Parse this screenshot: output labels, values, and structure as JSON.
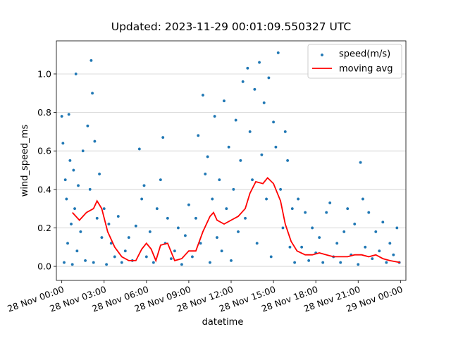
{
  "chart_data": {
    "type": "scatter",
    "title": "Updated: 2023-11-29 00:01:09.550327 UTC",
    "x_label": "datetime",
    "y_label": "wind_speed_ms",
    "xlim": [
      "27 Nov 23:37",
      "29 Nov 00:23"
    ],
    "xticks": [
      "28 Nov 00:00",
      "28 Nov 03:00",
      "28 Nov 06:00",
      "28 Nov 09:00",
      "28 Nov 12:00",
      "28 Nov 15:00",
      "28 Nov 18:00",
      "28 Nov 21:00",
      "29 Nov 00:00"
    ],
    "ylim": [
      -0.073,
      1.172
    ],
    "yticks": [
      {
        "value": 0,
        "label": "0.0"
      },
      0.2,
      0.4,
      0.6,
      0.8,
      {
        "value": 1,
        "label": "1.0"
      }
    ],
    "grid": "y",
    "legend": "upper right",
    "series": [
      {
        "name": "speed(m/s)",
        "type": "scatter",
        "color": "#1f77b4",
        "x": [
          "28 Nov 00:00",
          "28 Nov 00:05",
          "28 Nov 00:10",
          "28 Nov 00:15",
          "28 Nov 00:20",
          "28 Nov 00:25",
          "28 Nov 00:30",
          "28 Nov 00:35",
          "28 Nov 00:40",
          "28 Nov 00:45",
          "28 Nov 00:50",
          "28 Nov 00:55",
          "28 Nov 01:00",
          "28 Nov 01:05",
          "28 Nov 01:10",
          "28 Nov 01:20",
          "28 Nov 01:30",
          "28 Nov 01:40",
          "28 Nov 01:50",
          "28 Nov 02:00",
          "28 Nov 02:05",
          "28 Nov 02:10",
          "28 Nov 02:15",
          "28 Nov 02:20",
          "28 Nov 02:30",
          "28 Nov 02:40",
          "28 Nov 02:50",
          "28 Nov 03:00",
          "28 Nov 03:10",
          "28 Nov 03:20",
          "28 Nov 03:30",
          "28 Nov 03:45",
          "28 Nov 04:00",
          "28 Nov 04:15",
          "28 Nov 04:30",
          "28 Nov 04:45",
          "28 Nov 05:00",
          "28 Nov 05:15",
          "28 Nov 05:30",
          "28 Nov 05:40",
          "28 Nov 05:50",
          "28 Nov 06:00",
          "28 Nov 06:15",
          "28 Nov 06:30",
          "28 Nov 06:45",
          "28 Nov 07:00",
          "28 Nov 07:10",
          "28 Nov 07:20",
          "28 Nov 07:30",
          "28 Nov 07:45",
          "28 Nov 08:00",
          "28 Nov 08:15",
          "28 Nov 08:30",
          "28 Nov 08:45",
          "28 Nov 09:00",
          "28 Nov 09:15",
          "28 Nov 09:30",
          "28 Nov 09:40",
          "28 Nov 09:50",
          "28 Nov 10:00",
          "28 Nov 10:10",
          "28 Nov 10:20",
          "28 Nov 10:30",
          "28 Nov 10:40",
          "28 Nov 10:50",
          "28 Nov 11:00",
          "28 Nov 11:10",
          "28 Nov 11:20",
          "28 Nov 11:30",
          "28 Nov 11:40",
          "28 Nov 11:50",
          "28 Nov 12:00",
          "28 Nov 12:10",
          "28 Nov 12:20",
          "28 Nov 12:30",
          "28 Nov 12:40",
          "28 Nov 12:50",
          "28 Nov 13:00",
          "28 Nov 13:10",
          "28 Nov 13:20",
          "28 Nov 13:30",
          "28 Nov 13:40",
          "28 Nov 13:50",
          "28 Nov 14:00",
          "28 Nov 14:10",
          "28 Nov 14:20",
          "28 Nov 14:30",
          "28 Nov 14:40",
          "28 Nov 14:50",
          "28 Nov 15:00",
          "28 Nov 15:10",
          "28 Nov 15:20",
          "28 Nov 15:30",
          "28 Nov 15:40",
          "28 Nov 15:50",
          "28 Nov 16:00",
          "28 Nov 16:10",
          "28 Nov 16:20",
          "28 Nov 16:30",
          "28 Nov 16:45",
          "28 Nov 17:00",
          "28 Nov 17:15",
          "28 Nov 17:30",
          "28 Nov 17:45",
          "28 Nov 18:00",
          "28 Nov 18:15",
          "28 Nov 18:30",
          "28 Nov 18:45",
          "28 Nov 19:00",
          "28 Nov 19:15",
          "28 Nov 19:30",
          "28 Nov 19:45",
          "28 Nov 20:00",
          "28 Nov 20:15",
          "28 Nov 20:30",
          "28 Nov 20:45",
          "28 Nov 21:00",
          "28 Nov 21:10",
          "28 Nov 21:20",
          "28 Nov 21:30",
          "28 Nov 21:45",
          "28 Nov 22:00",
          "28 Nov 22:15",
          "28 Nov 22:30",
          "28 Nov 22:45",
          "28 Nov 23:00",
          "28 Nov 23:15",
          "28 Nov 23:30",
          "28 Nov 23:45",
          "28 Nov 23:55"
        ],
        "values": [
          0.78,
          0.64,
          0.02,
          0.45,
          0.35,
          0.12,
          0.79,
          0.55,
          0.22,
          0.01,
          0.5,
          0.3,
          1.0,
          0.08,
          0.42,
          0.18,
          0.6,
          0.03,
          0.73,
          0.4,
          1.07,
          0.9,
          0.02,
          0.65,
          0.25,
          0.48,
          0.15,
          0.3,
          0.01,
          0.22,
          0.12,
          0.05,
          0.26,
          0.02,
          0.08,
          0.15,
          0.03,
          0.21,
          0.61,
          0.35,
          0.42,
          0.05,
          0.18,
          0.02,
          0.3,
          0.45,
          0.67,
          0.12,
          0.25,
          0.04,
          0.08,
          0.2,
          0.01,
          0.16,
          0.32,
          0.05,
          0.25,
          0.68,
          0.12,
          0.89,
          0.48,
          0.57,
          0.02,
          0.35,
          0.78,
          0.15,
          0.45,
          0.08,
          0.86,
          0.3,
          0.62,
          0.03,
          0.4,
          0.76,
          0.18,
          0.55,
          0.96,
          0.25,
          1.03,
          0.7,
          0.45,
          0.92,
          0.12,
          1.06,
          0.58,
          0.85,
          0.35,
          0.98,
          0.05,
          0.75,
          0.62,
          1.11,
          0.4,
          0.2,
          0.7,
          0.55,
          0.1,
          0.3,
          0.02,
          0.35,
          0.1,
          0.28,
          0.03,
          0.2,
          0.07,
          0.15,
          0.02,
          0.28,
          0.33,
          0.05,
          0.12,
          0.02,
          0.18,
          0.3,
          0.06,
          0.22,
          0.01,
          0.54,
          0.35,
          0.1,
          0.28,
          0.04,
          0.18,
          0.08,
          0.23,
          0.02,
          0.12,
          0.06,
          0.2,
          0.02
        ]
      },
      {
        "name": "moving avg",
        "type": "line",
        "color": "#ff0000",
        "x": [
          "28 Nov 00:45",
          "28 Nov 01:15",
          "28 Nov 01:45",
          "28 Nov 02:15",
          "28 Nov 02:30",
          "28 Nov 02:50",
          "28 Nov 03:15",
          "28 Nov 03:45",
          "28 Nov 04:15",
          "28 Nov 04:45",
          "28 Nov 05:15",
          "28 Nov 05:40",
          "28 Nov 06:00",
          "28 Nov 06:20",
          "28 Nov 06:40",
          "28 Nov 07:00",
          "28 Nov 07:30",
          "28 Nov 08:00",
          "28 Nov 08:30",
          "28 Nov 09:00",
          "28 Nov 09:30",
          "28 Nov 10:00",
          "28 Nov 10:30",
          "28 Nov 10:45",
          "28 Nov 11:00",
          "28 Nov 11:30",
          "28 Nov 12:00",
          "28 Nov 12:30",
          "28 Nov 13:00",
          "28 Nov 13:20",
          "28 Nov 13:45",
          "28 Nov 14:15",
          "28 Nov 14:35",
          "28 Nov 15:00",
          "28 Nov 15:30",
          "28 Nov 15:50",
          "28 Nov 16:15",
          "28 Nov 16:40",
          "28 Nov 17:15",
          "28 Nov 17:45",
          "28 Nov 18:15",
          "28 Nov 18:45",
          "28 Nov 19:15",
          "28 Nov 19:45",
          "28 Nov 20:15",
          "28 Nov 20:45",
          "28 Nov 21:15",
          "28 Nov 21:45",
          "28 Nov 22:15",
          "28 Nov 22:45",
          "28 Nov 23:15",
          "28 Nov 23:59"
        ],
        "values": [
          0.28,
          0.24,
          0.28,
          0.3,
          0.34,
          0.3,
          0.18,
          0.1,
          0.05,
          0.03,
          0.03,
          0.09,
          0.12,
          0.09,
          0.03,
          0.11,
          0.12,
          0.03,
          0.04,
          0.08,
          0.08,
          0.18,
          0.26,
          0.28,
          0.24,
          0.22,
          0.24,
          0.26,
          0.3,
          0.38,
          0.44,
          0.43,
          0.46,
          0.43,
          0.34,
          0.22,
          0.13,
          0.08,
          0.06,
          0.06,
          0.07,
          0.06,
          0.05,
          0.05,
          0.05,
          0.06,
          0.06,
          0.05,
          0.06,
          0.04,
          0.03,
          0.02
        ]
      }
    ]
  }
}
